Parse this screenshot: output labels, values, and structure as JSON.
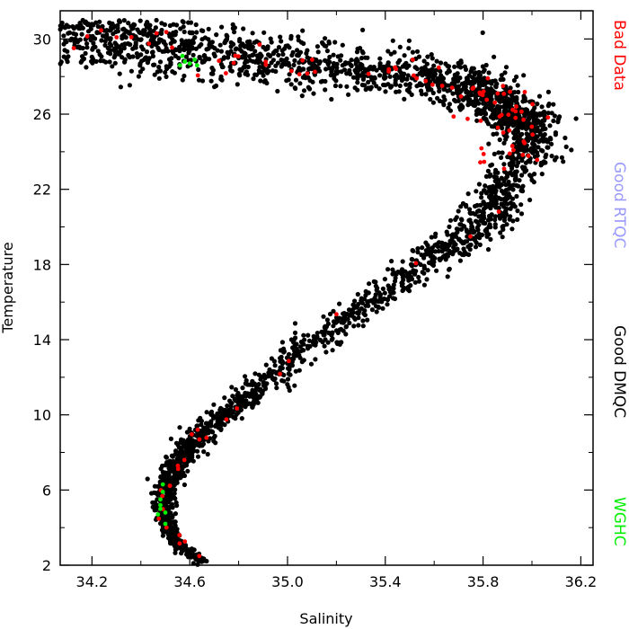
{
  "chart_data": {
    "type": "scatter",
    "title": "",
    "xlabel": "Salinity",
    "ylabel": "Temperature",
    "xlim": [
      34.07,
      36.25
    ],
    "ylim": [
      2,
      31.5
    ],
    "xticks": [
      34.2,
      34.6,
      35.0,
      35.4,
      35.8,
      36.2
    ],
    "xtick_labels": [
      "34.2",
      "34.6",
      "35.0",
      "35.4",
      "35.8",
      "36.2"
    ],
    "yticks": [
      2,
      6,
      10,
      14,
      18,
      22,
      26,
      30
    ],
    "ytick_labels": [
      "2",
      "6",
      "10",
      "14",
      "18",
      "22",
      "26",
      "30"
    ],
    "grid": false,
    "legend_placement": "right-outside-vertical",
    "legend": [
      {
        "label": "Bad Data",
        "color": "#ff0000"
      },
      {
        "label": "Good RTQC",
        "color": "#9999ff"
      },
      {
        "label": "Good DMQC",
        "color": "#000000"
      },
      {
        "label": "WGHC",
        "color": "#00ee00"
      }
    ],
    "curve": {
      "description_free_profile": true,
      "salinity": [
        34.65,
        34.56,
        34.51,
        34.49,
        34.5,
        34.53,
        34.58,
        34.65,
        34.74,
        34.85,
        34.98,
        35.12,
        35.28,
        35.44,
        35.58,
        35.7,
        35.8,
        35.86,
        35.9
      ],
      "temperature": [
        2.2,
        3.0,
        4.0,
        5.0,
        6.0,
        7.0,
        8.0,
        9.0,
        10.0,
        11.0,
        12.5,
        14.0,
        15.5,
        17.0,
        18.2,
        19.3,
        20.3,
        21.5,
        23.0
      ]
    },
    "upper_cloud": {
      "salinity": [
        35.9,
        35.92,
        35.93,
        35.92,
        35.9,
        35.87,
        35.83,
        35.76,
        35.66,
        35.5,
        35.32,
        35.12,
        34.92,
        34.74,
        34.56,
        34.4,
        34.24,
        34.1
      ],
      "temperature": [
        23.0,
        24.0,
        25.0,
        25.6,
        26.0,
        26.5,
        27.0,
        27.4,
        27.8,
        28.1,
        28.4,
        28.6,
        28.9,
        29.2,
        29.5,
        29.7,
        29.9,
        30.0
      ]
    },
    "series": [
      {
        "name": "Good DMQC",
        "color": "#000000",
        "count": 3200
      },
      {
        "name": "Bad Data",
        "color": "#ff0000",
        "count": 110
      },
      {
        "name": "WGHC",
        "color": "#00ee00",
        "count": 14
      }
    ]
  }
}
